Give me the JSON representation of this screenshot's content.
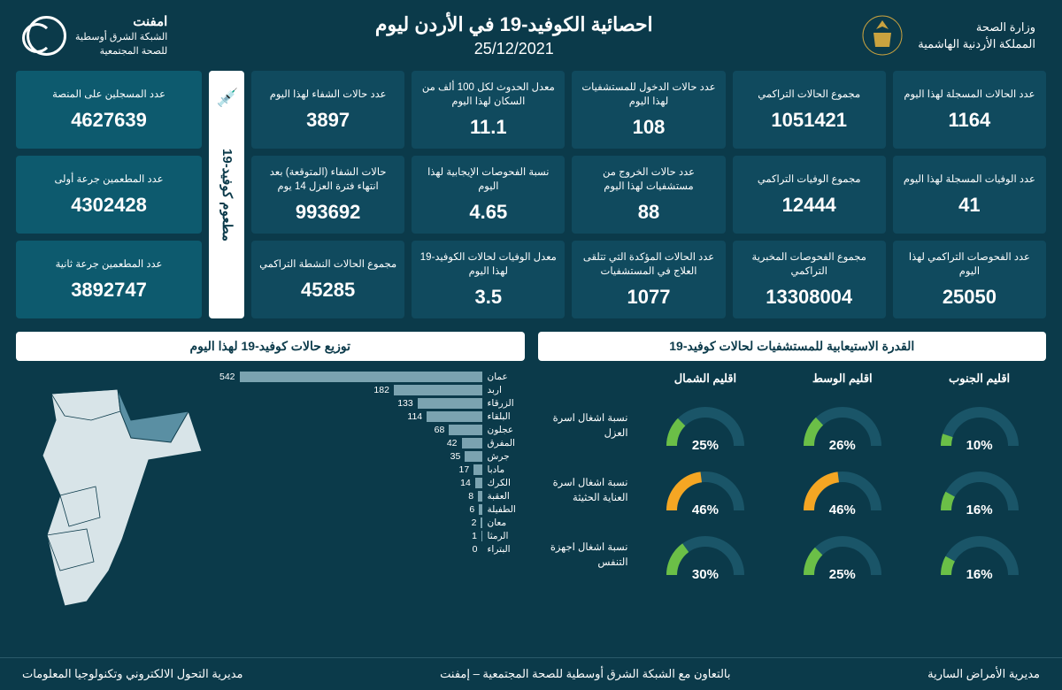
{
  "header": {
    "ministry_line1": "وزارة الصحة",
    "ministry_line2": "المملكة الأردنية الهاشمية",
    "title": "احصائية الكوفيد-19 في الأردن ليوم",
    "date": "25/12/2021",
    "partner_line1": "امفنت",
    "partner_line2": "الشبكة الشرق أوسطية",
    "partner_line3": "للصحة المجتمعية"
  },
  "stats": [
    {
      "label": "عدد الحالات المسجلة لهذا اليوم",
      "value": "1164"
    },
    {
      "label": "مجموع الحالات التراكمي",
      "value": "1051421"
    },
    {
      "label": "عدد حالات الدخول للمستشفيات لهذا اليوم",
      "value": "108"
    },
    {
      "label": "معدل الحدوث لكل 100 ألف من السكان لهذا اليوم",
      "value": "11.1"
    },
    {
      "label": "عدد حالات الشفاء لهذا اليوم",
      "value": "3897"
    },
    {
      "label": "عدد الوفيات المسجلة لهذا اليوم",
      "value": "41"
    },
    {
      "label": "مجموع الوفيات التراكمي",
      "value": "12444"
    },
    {
      "label": "عدد حالات الخروج من مستشفيات لهذا اليوم",
      "value": "88"
    },
    {
      "label": "نسبة الفحوصات الإيجابية لهذا اليوم",
      "value": "4.65"
    },
    {
      "label": "حالات الشفاء (المتوقعة) بعد انتهاء فترة العزل 14 يوم",
      "value": "993692"
    },
    {
      "label": "عدد الفحوصات التراكمي لهذا اليوم",
      "value": "25050"
    },
    {
      "label": "مجموع الفحوصات المخبرية التراكمي",
      "value": "13308004"
    },
    {
      "label": "عدد الحالات المؤكدة التي تتلقى العلاج في المستشفيات",
      "value": "1077"
    },
    {
      "label": "معدل الوفيات لحالات الكوفيد-19 لهذا اليوم",
      "value": "3.5"
    },
    {
      "label": "مجموع الحالات النشطة التراكمي",
      "value": "45285"
    }
  ],
  "vaccine_tab": "مطعوم كوفيد-19",
  "vaccine": [
    {
      "label": "عدد المسجلين على المنصة",
      "value": "4627639"
    },
    {
      "label": "عدد المطعمين جرعة أولى",
      "value": "4302428"
    },
    {
      "label": "عدد المطعمين جرعة ثانية",
      "value": "3892747"
    }
  ],
  "capacity": {
    "title": "القدرة الاستيعابية للمستشفيات لحالات كوفيد-19",
    "regions": [
      "اقليم الشمال",
      "اقليم الوسط",
      "اقليم الجنوب"
    ],
    "rows": [
      {
        "label": "نسبة اشغال اسرة العزل",
        "values": [
          25,
          26,
          10
        ],
        "colors": [
          "#6bbf47",
          "#6bbf47",
          "#6bbf47"
        ]
      },
      {
        "label": "نسبة اشغال اسرة العناية الحثيثة",
        "values": [
          46,
          46,
          16
        ],
        "colors": [
          "#f5a623",
          "#f5a623",
          "#6bbf47"
        ]
      },
      {
        "label": "نسبة اشغال اجهزة التنفس",
        "values": [
          30,
          25,
          16
        ],
        "colors": [
          "#6bbf47",
          "#6bbf47",
          "#6bbf47"
        ]
      }
    ],
    "track_color": "#1a5568"
  },
  "distribution": {
    "title": "توزيع حالات كوفيد-19 لهذا اليوم",
    "max": 542,
    "bar_color": "#7ba3b0",
    "items": [
      {
        "name": "عمان",
        "value": 542
      },
      {
        "name": "اربد",
        "value": 182
      },
      {
        "name": "الزرقاء",
        "value": 133
      },
      {
        "name": "البلقاء",
        "value": 114
      },
      {
        "name": "عجلون",
        "value": 68
      },
      {
        "name": "المفرق",
        "value": 42
      },
      {
        "name": "جرش",
        "value": 35
      },
      {
        "name": "مادبا",
        "value": 17
      },
      {
        "name": "الكرك",
        "value": 14
      },
      {
        "name": "العقبة",
        "value": 8
      },
      {
        "name": "الطفيلة",
        "value": 6
      },
      {
        "name": "معان",
        "value": 2
      },
      {
        "name": "الرمثا",
        "value": 1
      },
      {
        "name": "البتراء",
        "value": 0
      }
    ],
    "map_fill": "#d8e4e8",
    "map_highlight": "#5a8fa3"
  },
  "footer": {
    "right": "مديرية الأمراض السارية",
    "center": "بالتعاون مع الشبكة الشرق أوسطية للصحة المجتمعية – إمفنت",
    "left": "مديرية التحول الالكتروني وتكنولوجيا المعلومات"
  }
}
